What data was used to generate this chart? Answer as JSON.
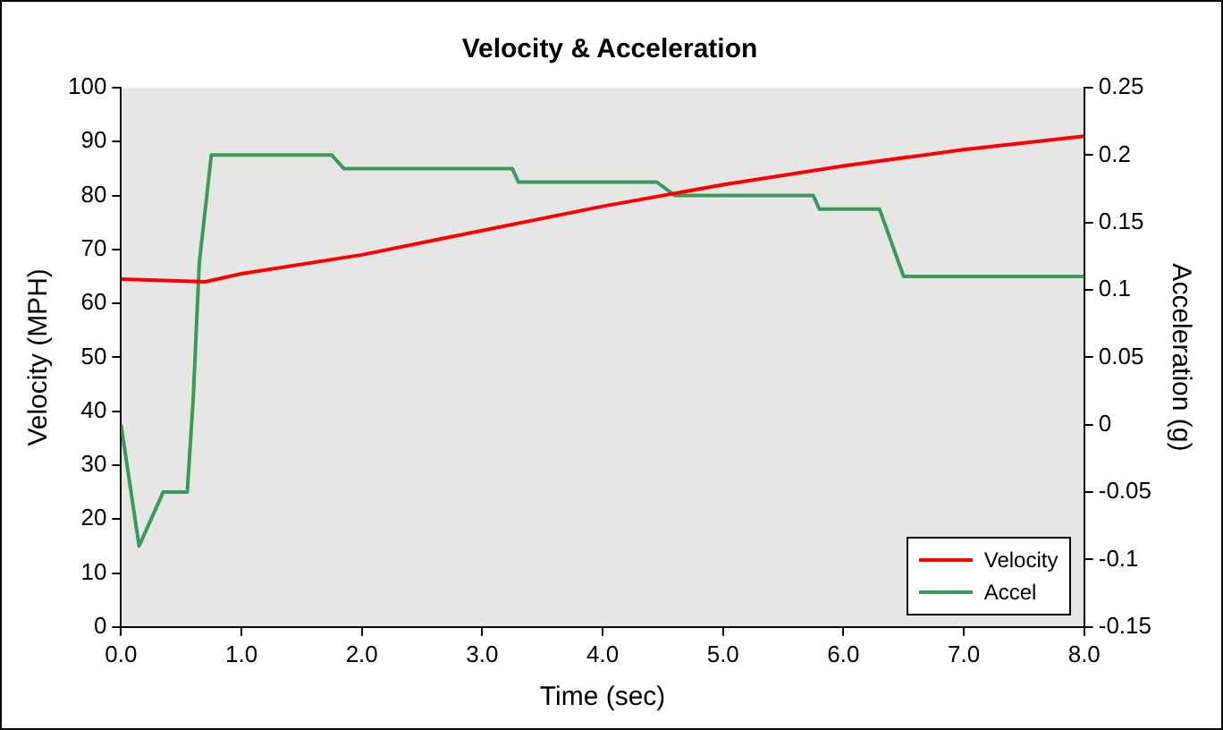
{
  "chart_data": {
    "type": "line",
    "title": "Velocity & Acceleration",
    "xlabel": "Time (sec)",
    "ylabel": "Velocity (MPH)",
    "y2label": "Acceleration (g)",
    "series": [
      {
        "name": "Velocity",
        "color": "#ff0000",
        "x": [
          0,
          0.7,
          1,
          2,
          3,
          4,
          5,
          6,
          7,
          8
        ],
        "values": [
          64.5,
          64,
          65.5,
          69,
          73.5,
          78,
          82,
          85.5,
          88.5,
          91
        ]
      },
      {
        "name": "Accel",
        "color": "#3a9a5a",
        "axis": "y2",
        "x": [
          0,
          0.15,
          0.3,
          0.35,
          0.55,
          0.6,
          0.65,
          0.75,
          1.75,
          1.85,
          3.25,
          3.3,
          4.45,
          4.6,
          5.75,
          5.8,
          6.3,
          6.5,
          8
        ],
        "values": [
          0,
          -0.09,
          -0.06,
          -0.05,
          -0.05,
          0.02,
          0.12,
          0.2,
          0.2,
          0.19,
          0.19,
          0.18,
          0.18,
          0.17,
          0.17,
          0.16,
          0.16,
          0.11,
          0.11
        ]
      }
    ],
    "xlim": [
      0,
      8
    ],
    "xticks": [
      {
        "value": 0,
        "label": "0.0"
      },
      {
        "value": 1,
        "label": "1.0"
      },
      {
        "value": 2,
        "label": "2.0"
      },
      {
        "value": 3,
        "label": "3.0"
      },
      {
        "value": 4,
        "label": "4.0"
      },
      {
        "value": 5,
        "label": "5.0"
      },
      {
        "value": 6,
        "label": "6.0"
      },
      {
        "value": 7,
        "label": "7.0"
      },
      {
        "value": 8,
        "label": "8.0"
      }
    ],
    "ylim": [
      0,
      100
    ],
    "yticks": [
      0,
      10,
      20,
      30,
      40,
      50,
      60,
      70,
      80,
      90,
      100
    ],
    "y2lim": [
      -0.15,
      0.25
    ],
    "y2ticks": [
      -0.15,
      -0.1,
      -0.05,
      0,
      0.05,
      0.1,
      0.15,
      0.2,
      0.25
    ],
    "grid": false,
    "legend": "bottom right",
    "marker": "none",
    "line_style": "solid"
  }
}
